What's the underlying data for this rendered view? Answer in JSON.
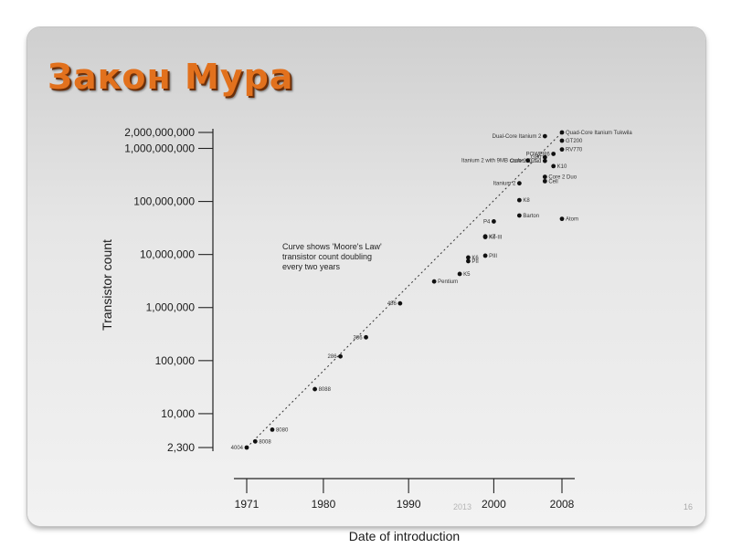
{
  "slide": {
    "title": "Закон Мура",
    "watermark": "2013",
    "page_number": "16"
  },
  "chart_data": {
    "type": "scatter",
    "title": "",
    "xlabel": "Date of introduction",
    "ylabel": "Transistor count",
    "xlim": [
      1971,
      2008
    ],
    "ylim": [
      2300,
      2000000000
    ],
    "yscale": "log",
    "grid": false,
    "x_ticks": [
      {
        "value": 1971,
        "label": "1971"
      },
      {
        "value": 1980,
        "label": "1980"
      },
      {
        "value": 1990,
        "label": "1990"
      },
      {
        "value": 2000,
        "label": "2000"
      },
      {
        "value": 2008,
        "label": "2008"
      }
    ],
    "y_ticks": [
      {
        "value": 2300,
        "label": "2,300"
      },
      {
        "value": 10000,
        "label": "10,000"
      },
      {
        "value": 100000,
        "label": "100,000"
      },
      {
        "value": 1000000,
        "label": "1,000,000"
      },
      {
        "value": 10000000,
        "label": "10,000,000"
      },
      {
        "value": 100000000,
        "label": "100,000,000"
      },
      {
        "value": 1000000000,
        "label": "1,000,000,000"
      },
      {
        "value": 2000000000,
        "label": "2,000,000,000"
      }
    ],
    "annotation": [
      "Curve shows 'Moore's Law'",
      "transistor count doubling",
      "every two years"
    ],
    "trend_line": {
      "x": [
        1971,
        2008
      ],
      "y": [
        2300,
        2000000000
      ],
      "style": "dotted"
    },
    "points": [
      {
        "name": "4004",
        "x": 1971,
        "y": 2300,
        "label_side": "left"
      },
      {
        "name": "8008",
        "x": 1972,
        "y": 3000,
        "label_side": "right"
      },
      {
        "name": "8080",
        "x": 1974,
        "y": 5000,
        "label_side": "right"
      },
      {
        "name": "8088",
        "x": 1979,
        "y": 29000,
        "label_side": "right"
      },
      {
        "name": "286",
        "x": 1982,
        "y": 120000,
        "label_side": "left"
      },
      {
        "name": "386",
        "x": 1985,
        "y": 275000,
        "label_side": "left"
      },
      {
        "name": "486",
        "x": 1989,
        "y": 1200000,
        "label_side": "left"
      },
      {
        "name": "Pentium",
        "x": 1993,
        "y": 3100000,
        "label_side": "right"
      },
      {
        "name": "K5",
        "x": 1996,
        "y": 4300000,
        "label_side": "right"
      },
      {
        "name": "PII",
        "x": 1997,
        "y": 7500000,
        "label_side": "right"
      },
      {
        "name": "K6",
        "x": 1997,
        "y": 8800000,
        "label_side": "right"
      },
      {
        "name": "PIII",
        "x": 1999,
        "y": 9500000,
        "label_side": "right"
      },
      {
        "name": "K6-III",
        "x": 1999,
        "y": 21300000,
        "label_side": "right"
      },
      {
        "name": "K7",
        "x": 1999,
        "y": 22000000,
        "label_side": "right"
      },
      {
        "name": "P4",
        "x": 2000,
        "y": 42000000,
        "label_side": "left"
      },
      {
        "name": "Barton",
        "x": 2003,
        "y": 54300000,
        "label_side": "right"
      },
      {
        "name": "K8",
        "x": 2003,
        "y": 105900000,
        "label_side": "right"
      },
      {
        "name": "Itanium 2",
        "x": 2003,
        "y": 220000000,
        "label_side": "left"
      },
      {
        "name": "Atom",
        "x": 2008,
        "y": 47000000,
        "label_side": "right"
      },
      {
        "name": "Cell",
        "x": 2006,
        "y": 241000000,
        "label_side": "right"
      },
      {
        "name": "Core 2 Duo",
        "x": 2006,
        "y": 291000000,
        "label_side": "right"
      },
      {
        "name": "Core 2 Quad",
        "x": 2006,
        "y": 582000000,
        "label_side": "left"
      },
      {
        "name": "K10",
        "x": 2007,
        "y": 463000000,
        "label_side": "right"
      },
      {
        "name": "Itanium 2 with 9MB cache",
        "x": 2004,
        "y": 592000000,
        "label_side": "left"
      },
      {
        "name": "G80",
        "x": 2006,
        "y": 681000000,
        "label_side": "left"
      },
      {
        "name": "POWER6",
        "x": 2007,
        "y": 789000000,
        "label_side": "left"
      },
      {
        "name": "Dual-Core Itanium 2",
        "x": 2006,
        "y": 1700000000,
        "label_side": "left"
      },
      {
        "name": "RV770",
        "x": 2008,
        "y": 956000000,
        "label_side": "right"
      },
      {
        "name": "GT200",
        "x": 2008,
        "y": 1400000000,
        "label_side": "right"
      },
      {
        "name": "Quad-Core Itanium Tukwila",
        "x": 2008,
        "y": 2000000000,
        "label_side": "right"
      }
    ]
  }
}
